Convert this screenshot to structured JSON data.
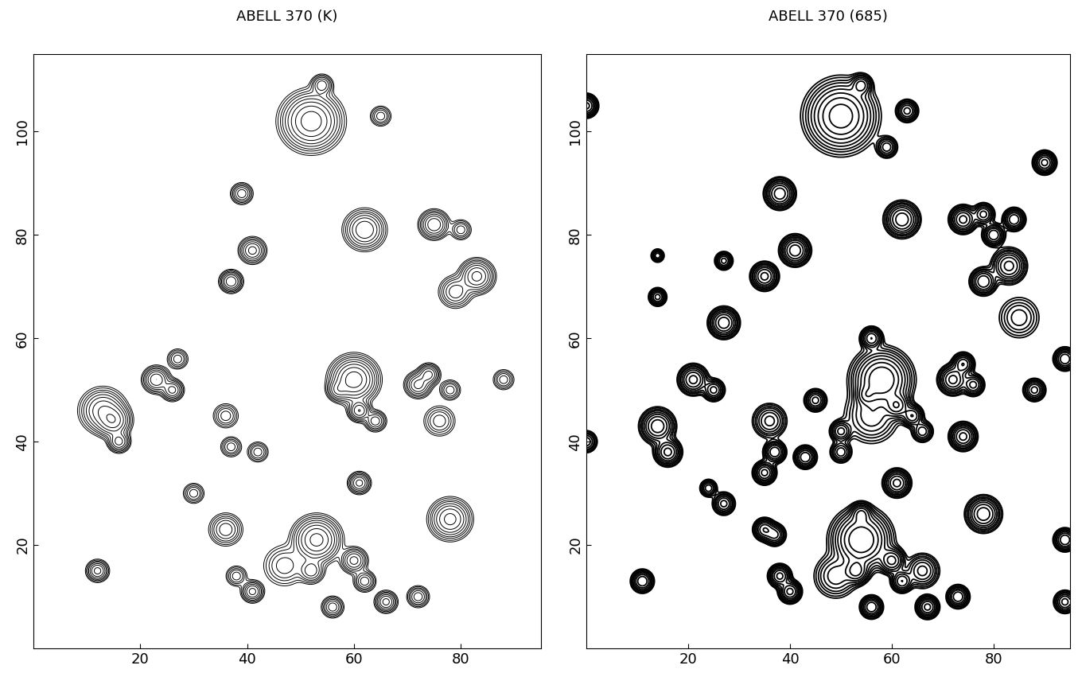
{
  "chart_data": [
    {
      "type": "contour",
      "title": "ABELL 370 (K)",
      "xlim": [
        0,
        95
      ],
      "ylim": [
        0,
        115
      ],
      "xticks": [
        20,
        40,
        60,
        80
      ],
      "yticks": [
        20,
        40,
        60,
        80,
        100
      ],
      "color": "#000000",
      "levels": [
        0.3,
        0.45,
        0.7,
        1.0,
        1.5,
        2.2,
        3.3,
        5.0,
        7.5
      ],
      "sources": {
        "x": [
          52,
          54,
          65,
          39,
          62,
          75,
          80,
          41,
          37,
          83,
          79,
          13,
          15,
          16,
          23,
          26,
          27,
          60,
          61,
          57,
          64,
          74,
          72,
          78,
          76,
          61,
          78,
          53,
          60,
          62,
          52,
          47,
          41,
          38,
          36,
          12,
          56,
          66,
          72,
          37,
          36,
          42,
          30,
          88
        ],
        "y": [
          102,
          109,
          103,
          88,
          81,
          82,
          81,
          77,
          71,
          72,
          69,
          46,
          44,
          40,
          52,
          50,
          56,
          52,
          46,
          50,
          44,
          53,
          51,
          50,
          44,
          32,
          25,
          21,
          17,
          13,
          15,
          16,
          11,
          14,
          23,
          15,
          8,
          9,
          10,
          39,
          45,
          38,
          30,
          52
        ],
        "amplitude": [
          10,
          3,
          2,
          3,
          5,
          5,
          2,
          4,
          5,
          6,
          3,
          5,
          6,
          4,
          5,
          4,
          2,
          10,
          5,
          3,
          3,
          4,
          4,
          2,
          2,
          4,
          6,
          9,
          4,
          3,
          3,
          2,
          4,
          2,
          3,
          4,
          3,
          4,
          3,
          2,
          2,
          2,
          2,
          2
        ],
        "width": [
          2.5,
          1,
          1,
          1,
          1.8,
          1.3,
          1,
          1.2,
          1,
          1.5,
          1.5,
          2,
          1.5,
          1,
          1.2,
          1,
          1,
          2,
          1,
          1,
          1,
          1,
          1.2,
          1,
          1.5,
          1,
          1.8,
          2,
          1.2,
          1,
          1.2,
          2,
          1,
          1,
          1.5,
          1,
          1,
          1,
          1,
          1,
          1.2,
          1,
          1,
          1
        ]
      }
    },
    {
      "type": "contour",
      "title": "ABELL 370 (685)",
      "xlim": [
        0,
        95
      ],
      "ylim": [
        0,
        115
      ],
      "xticks": [
        20,
        40,
        60,
        80
      ],
      "yticks": [
        20,
        40,
        60,
        80,
        100
      ],
      "color": "#000000",
      "levels": [
        0.3,
        0.45,
        0.7,
        1.0,
        1.5,
        2.2,
        3.3,
        5.0,
        7.5
      ],
      "sources": {
        "x": [
          50,
          54,
          63,
          59,
          90,
          38,
          62,
          74,
          78,
          84,
          80,
          83,
          78,
          41,
          35,
          27,
          14,
          27,
          85,
          56,
          58,
          61,
          55,
          64,
          66,
          56,
          72,
          74,
          76,
          74,
          88,
          94,
          21,
          25,
          14,
          16,
          36,
          45,
          50,
          50,
          43,
          37,
          35,
          61,
          78,
          54,
          54,
          53,
          60,
          62,
          49,
          66,
          27,
          24,
          35,
          37,
          38,
          40,
          56,
          67,
          73,
          11,
          94,
          94,
          0,
          0,
          14
        ],
        "y": [
          103,
          109,
          104,
          97,
          94,
          88,
          83,
          83,
          84,
          83,
          80,
          74,
          71,
          77,
          72,
          75,
          68,
          63,
          64,
          60,
          52,
          47,
          49,
          45,
          42,
          45,
          52,
          55,
          51,
          41,
          50,
          56,
          52,
          50,
          43,
          38,
          44,
          48,
          42,
          38,
          37,
          38,
          34,
          32,
          26,
          21,
          26,
          15,
          17,
          13,
          14,
          15,
          28,
          31,
          23,
          22,
          14,
          11,
          8,
          8,
          10,
          13,
          21,
          9,
          105,
          40,
          76
        ],
        "amplitude": [
          10,
          4,
          4,
          3,
          6,
          7,
          7,
          6,
          4,
          5,
          5,
          6,
          5,
          7,
          6,
          4,
          4,
          7,
          2,
          5,
          12,
          7,
          4,
          5,
          3,
          3,
          6,
          5,
          4,
          6,
          4,
          5,
          6,
          4,
          7,
          6,
          4,
          4,
          4,
          3,
          5,
          5,
          6,
          6,
          7,
          12,
          5,
          6,
          6,
          5,
          3,
          4,
          4,
          3,
          5,
          4,
          6,
          6,
          5,
          6,
          5,
          5,
          5,
          4,
          6,
          3,
          3
        ],
        "width": [
          3,
          1,
          1,
          1,
          1,
          1.3,
          1.5,
          1.2,
          1,
          1,
          1,
          1.5,
          1.2,
          1.3,
          1.2,
          0.8,
          0.8,
          1.3,
          2,
          1,
          2.5,
          1.2,
          1,
          1,
          1,
          2.5,
          1.3,
          1,
          1,
          1.2,
          1,
          1,
          1.3,
          1,
          1.5,
          1.2,
          1.5,
          1,
          1,
          1,
          1,
          1,
          1,
          1.2,
          1.5,
          2.5,
          1,
          1.2,
          1.2,
          1,
          2,
          1.5,
          1,
          0.8,
          1,
          1,
          1,
          1,
          1,
          1,
          1,
          1,
          1,
          1,
          1,
          1,
          0.6
        ]
      }
    }
  ]
}
